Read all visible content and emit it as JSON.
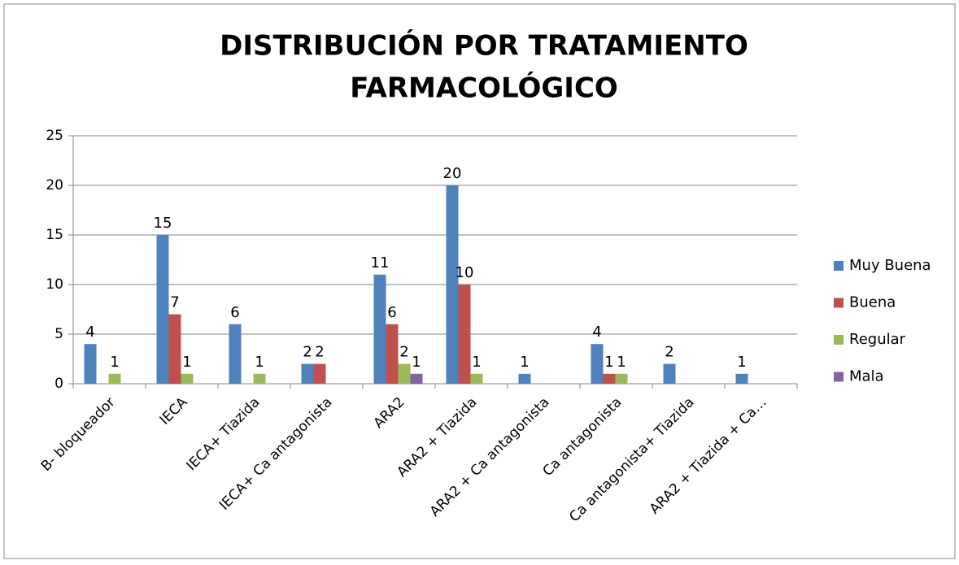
{
  "chart_data": {
    "type": "bar",
    "title": [
      "DISTRIBUCIÓN POR TRATAMIENTO",
      "FARMACOLÓGICO"
    ],
    "categories": [
      "B- bloqueador",
      "IECA",
      "IECA+ Tiazida",
      "IECA+ Ca antagonista",
      "ARA2",
      "ARA2 + Tiazida",
      "ARA2 + Ca antagonista",
      "Ca antagonista",
      "Ca antagonista+ Tiazida",
      "ARA2 + Tiazida + Ca…"
    ],
    "series": [
      {
        "name": "Muy Buena",
        "color": "#4f81bd",
        "values": [
          4,
          15,
          6,
          2,
          11,
          20,
          1,
          4,
          2,
          1
        ]
      },
      {
        "name": "Buena",
        "color": "#c0504d",
        "values": [
          null,
          7,
          null,
          2,
          6,
          10,
          null,
          1,
          null,
          null
        ]
      },
      {
        "name": "Regular",
        "color": "#9bbb59",
        "values": [
          1,
          1,
          1,
          null,
          2,
          1,
          null,
          1,
          null,
          null
        ]
      },
      {
        "name": "Mala",
        "color": "#8064a2",
        "values": [
          null,
          null,
          null,
          null,
          1,
          null,
          null,
          null,
          null,
          null
        ]
      }
    ],
    "ylim": [
      0,
      25
    ],
    "yticks": [
      0,
      5,
      10,
      15,
      20,
      25
    ],
    "grid": true,
    "legend": "right"
  }
}
